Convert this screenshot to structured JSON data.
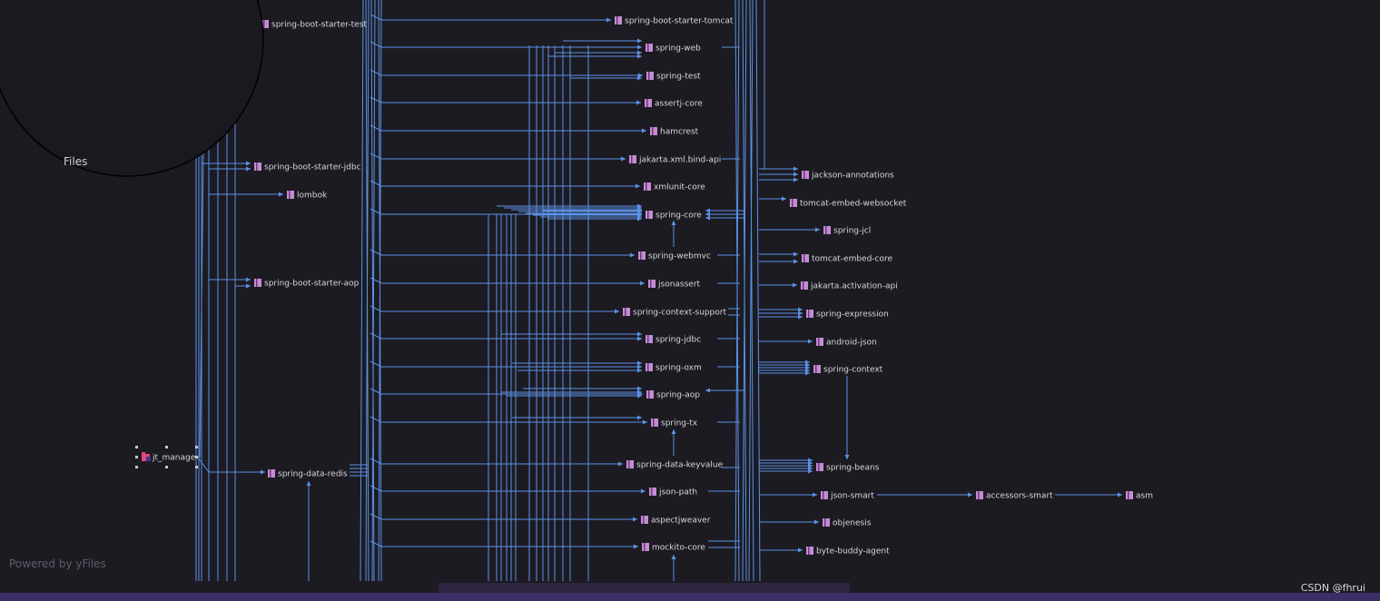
{
  "overview": {
    "label": "Files"
  },
  "powered_by": "Powered by yFiles",
  "credit": "CSDN @fhrui",
  "colors": {
    "background": "#1c1b22",
    "edge": "#5b92e5",
    "node_text": "#d7d7dc",
    "jar_icon": "#c58cd4",
    "module_icon": "#e0457b"
  },
  "root": {
    "id": "jt_manage",
    "label": "jt_manage",
    "icon": "module-folder-icon"
  },
  "nodes": [
    {
      "id": "spring-boot-starter-test",
      "label": "spring-boot-starter-test"
    },
    {
      "id": "spring-boot-starter-jdbc",
      "label": "spring-boot-starter-jdbc"
    },
    {
      "id": "lombok",
      "label": "lombok"
    },
    {
      "id": "spring-boot-starter-aop",
      "label": "spring-boot-starter-aop"
    },
    {
      "id": "spring-data-redis",
      "label": "spring-data-redis"
    },
    {
      "id": "spring-boot-starter-tomcat",
      "label": "spring-boot-starter-tomcat"
    },
    {
      "id": "spring-web",
      "label": "spring-web"
    },
    {
      "id": "spring-test",
      "label": "spring-test"
    },
    {
      "id": "assertj-core",
      "label": "assertj-core"
    },
    {
      "id": "hamcrest",
      "label": "hamcrest"
    },
    {
      "id": "jakarta-xml-bind-api",
      "label": "jakarta.xml.bind-api"
    },
    {
      "id": "xmlunit-core",
      "label": "xmlunit-core"
    },
    {
      "id": "spring-core",
      "label": "spring-core"
    },
    {
      "id": "spring-webmvc",
      "label": "spring-webmvc"
    },
    {
      "id": "jsonassert",
      "label": "jsonassert"
    },
    {
      "id": "spring-context-support",
      "label": "spring-context-support"
    },
    {
      "id": "spring-jdbc",
      "label": "spring-jdbc"
    },
    {
      "id": "spring-oxm",
      "label": "spring-oxm"
    },
    {
      "id": "spring-aop",
      "label": "spring-aop"
    },
    {
      "id": "spring-tx",
      "label": "spring-tx"
    },
    {
      "id": "spring-data-keyvalue",
      "label": "spring-data-keyvalue"
    },
    {
      "id": "json-path",
      "label": "json-path"
    },
    {
      "id": "aspectjweaver",
      "label": "aspectjweaver"
    },
    {
      "id": "mockito-core",
      "label": "mockito-core"
    },
    {
      "id": "jackson-annotations",
      "label": "jackson-annotations"
    },
    {
      "id": "tomcat-embed-websocket",
      "label": "tomcat-embed-websocket"
    },
    {
      "id": "spring-jcl",
      "label": "spring-jcl"
    },
    {
      "id": "tomcat-embed-core",
      "label": "tomcat-embed-core"
    },
    {
      "id": "jakarta-activation-api",
      "label": "jakarta.activation-api"
    },
    {
      "id": "spring-expression",
      "label": "spring-expression"
    },
    {
      "id": "android-json",
      "label": "android-json"
    },
    {
      "id": "spring-context",
      "label": "spring-context"
    },
    {
      "id": "spring-beans",
      "label": "spring-beans"
    },
    {
      "id": "json-smart",
      "label": "json-smart"
    },
    {
      "id": "accessors-smart",
      "label": "accessors-smart"
    },
    {
      "id": "asm",
      "label": "asm"
    },
    {
      "id": "objenesis",
      "label": "objenesis"
    },
    {
      "id": "byte-buddy-agent",
      "label": "byte-buddy-agent"
    }
  ]
}
